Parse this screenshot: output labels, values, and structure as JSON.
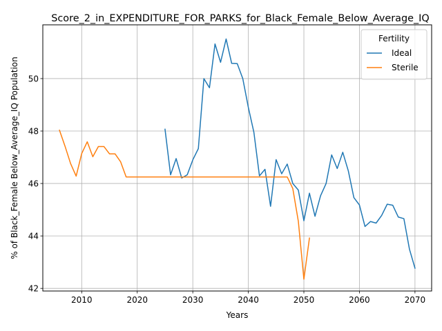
{
  "chart_data": {
    "type": "line",
    "title": "Score_2_in_EXPENDITURE_FOR_PARKS_for_Black_Female_Below_Average_IQ",
    "xlabel": "Years",
    "ylabel": "% of Black_Female Below_Average_IQ Population",
    "xlim": [
      2003,
      2073
    ],
    "ylim": [
      41.9,
      52.05
    ],
    "xticks": [
      2010,
      2020,
      2030,
      2040,
      2050,
      2060,
      2070
    ],
    "yticks": [
      42,
      44,
      46,
      48,
      50
    ],
    "grid": true,
    "legend": {
      "title": "Fertility",
      "placement": "top-right"
    },
    "series": [
      {
        "name": "Ideal",
        "color": "#1f77b4",
        "x": [
          2025,
          2026,
          2027,
          2028,
          2029,
          2030,
          2031,
          2032,
          2033,
          2034,
          2035,
          2036,
          2037,
          2038,
          2039,
          2040,
          2041,
          2042,
          2043,
          2044,
          2045,
          2046,
          2047,
          2048,
          2049,
          2050,
          2051,
          2052,
          2053,
          2054,
          2055,
          2056,
          2057,
          2058,
          2059,
          2060,
          2061,
          2062,
          2063,
          2064,
          2065,
          2066,
          2067,
          2068,
          2069,
          2070
        ],
        "y": [
          48.07,
          46.33,
          46.95,
          46.21,
          46.33,
          46.9,
          47.33,
          50.0,
          49.65,
          51.32,
          50.62,
          51.51,
          50.58,
          50.57,
          50.0,
          48.9,
          47.95,
          46.29,
          46.54,
          45.13,
          46.91,
          46.37,
          46.74,
          46.0,
          45.75,
          44.58,
          45.63,
          44.75,
          45.53,
          46.0,
          47.09,
          46.57,
          47.19,
          46.48,
          45.46,
          45.18,
          44.36,
          44.55,
          44.49,
          44.78,
          45.21,
          45.17,
          44.72,
          44.66,
          43.5,
          42.77
        ]
      },
      {
        "name": "Sterile",
        "color": "#ff7f0e",
        "x": [
          2006,
          2007,
          2008,
          2009,
          2010,
          2011,
          2012,
          2013,
          2014,
          2015,
          2016,
          2017,
          2018,
          2019,
          2020,
          2021,
          2022,
          2023,
          2024,
          2025,
          2026,
          2027,
          2028,
          2029,
          2030,
          2031,
          2032,
          2033,
          2034,
          2035,
          2036,
          2037,
          2038,
          2039,
          2040,
          2041,
          2042,
          2043,
          2044,
          2045,
          2046,
          2047,
          2048,
          2049,
          2050,
          2051
        ],
        "y": [
          48.03,
          47.42,
          46.76,
          46.28,
          47.14,
          47.59,
          47.02,
          47.41,
          47.41,
          47.13,
          47.13,
          46.83,
          46.25,
          46.25,
          46.25,
          46.25,
          46.25,
          46.25,
          46.25,
          46.25,
          46.25,
          46.25,
          46.25,
          46.25,
          46.25,
          46.25,
          46.25,
          46.25,
          46.25,
          46.25,
          46.25,
          46.25,
          46.25,
          46.25,
          46.25,
          46.25,
          46.25,
          46.25,
          46.25,
          46.25,
          46.25,
          46.25,
          45.81,
          44.56,
          42.35,
          43.92
        ]
      }
    ]
  }
}
